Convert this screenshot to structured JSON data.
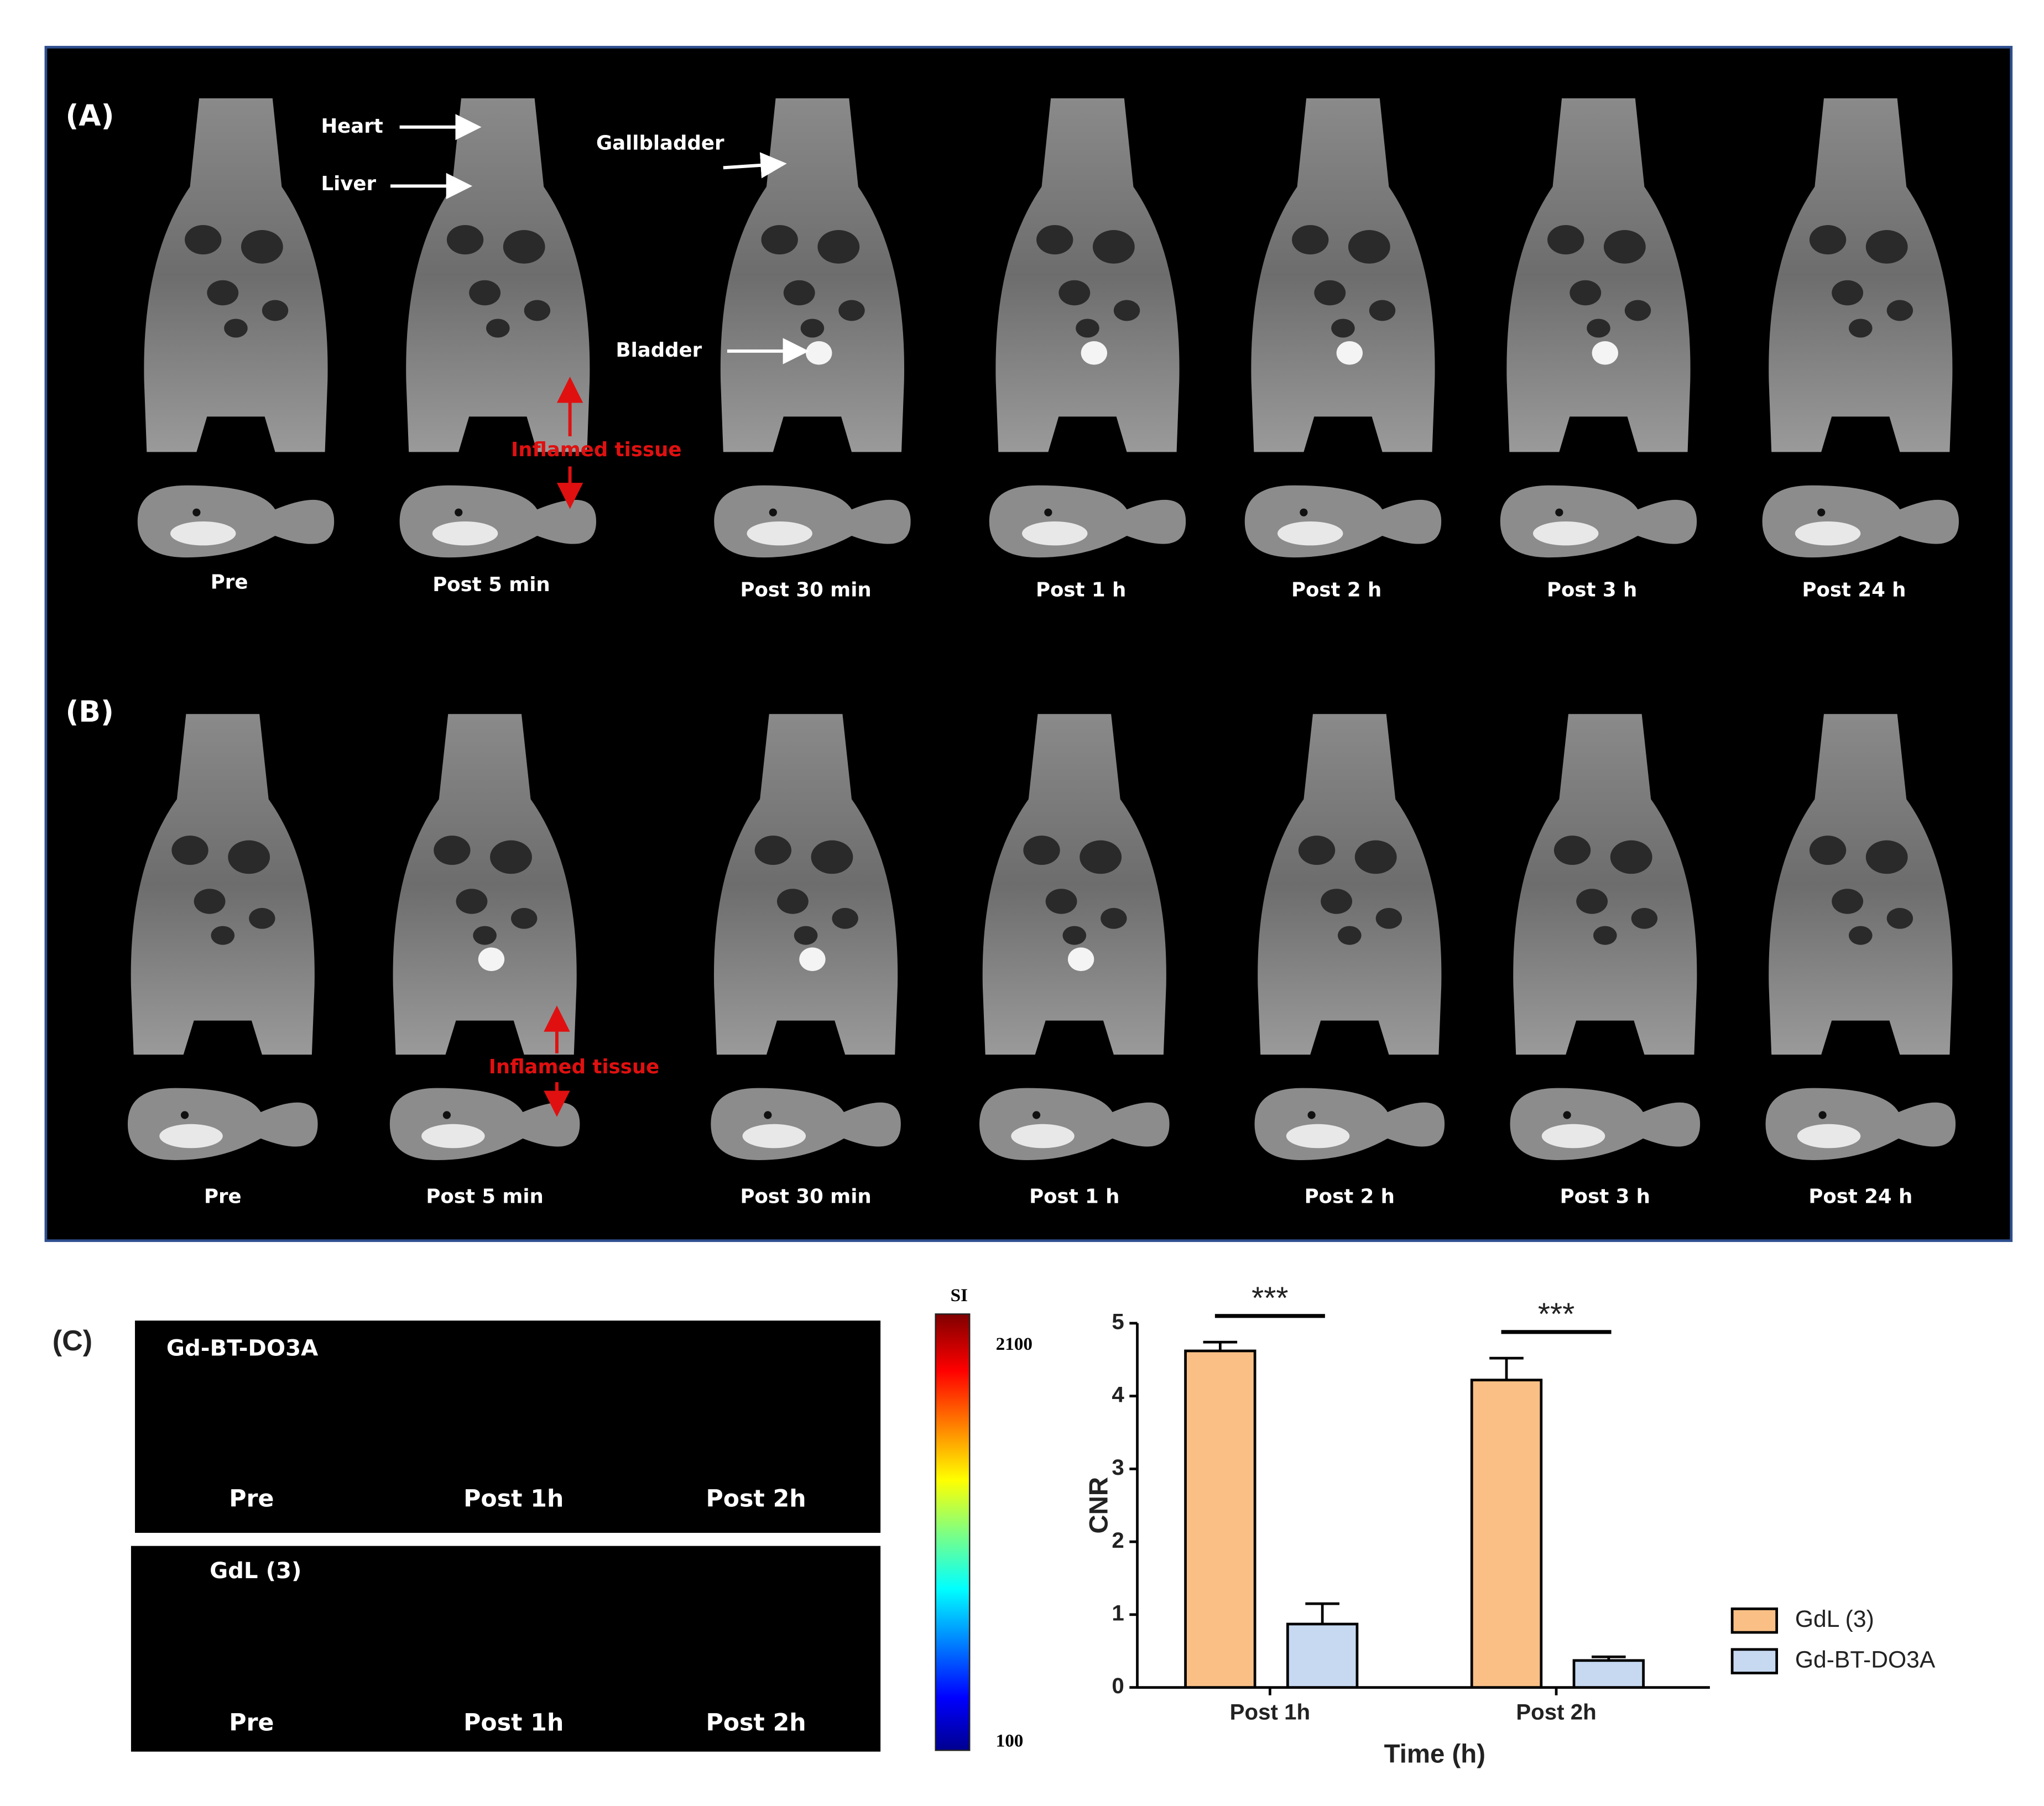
{
  "panel_a": {
    "label": "(A)",
    "annotations": {
      "heart": "Heart",
      "liver": "Liver",
      "gallbladder": "Gallbladder",
      "bladder": "Bladder",
      "inflamed": "Inflamed tissue"
    },
    "timepoints": [
      "Pre",
      "Post 5 min",
      "Post 30 min",
      "Post 1 h",
      "Post 2 h",
      "Post 3 h",
      "Post 24 h"
    ]
  },
  "panel_b": {
    "label": "(B)",
    "annotations": {
      "inflamed": "Inflamed tissue"
    },
    "timepoints": [
      "Pre",
      "Post 5 min",
      "Post 30 min",
      "Post 1 h",
      "Post 2 h",
      "Post 3 h",
      "Post 24 h"
    ]
  },
  "panel_c": {
    "label": "(C)",
    "groups": [
      {
        "name": "Gd-BT-DO3A",
        "timepoints": [
          "Pre",
          "Post 1h",
          "Post 2h"
        ]
      },
      {
        "name": "GdL (3)",
        "timepoints": [
          "Pre",
          "Post 1h",
          "Post 2h"
        ]
      }
    ],
    "colorbar": {
      "title": "SI",
      "max": 2100,
      "min": 100
    }
  },
  "chart_data": {
    "type": "bar",
    "y_label": "CNR",
    "x_label": "Time (h)",
    "categories": [
      "Post 1h",
      "Post 2h"
    ],
    "series": [
      {
        "name": "GdL (3)",
        "color": "#f9bf85",
        "values": [
          4.62,
          4.22
        ],
        "errors": [
          0.12,
          0.3
        ]
      },
      {
        "name": "Gd-BT-DO3A",
        "color": "#c6d9f1",
        "values": [
          0.87,
          0.37
        ],
        "errors": [
          0.28,
          0.05
        ]
      }
    ],
    "significance": [
      "***",
      "***"
    ],
    "ylim": [
      0,
      5
    ],
    "yticks": [
      0,
      1,
      2,
      3,
      4,
      5
    ]
  }
}
